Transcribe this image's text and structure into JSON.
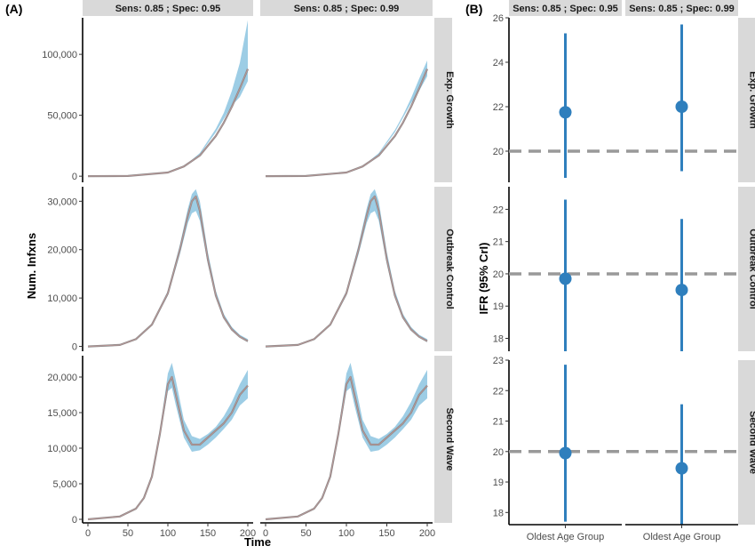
{
  "figure": {
    "panel_a_label": "(A)",
    "panel_b_label": "(B)",
    "columns": [
      "Sens: 0.85 ; Spec: 0.95",
      "Sens: 0.85 ; Spec: 0.99"
    ],
    "rows": [
      "Exp. Growth",
      "Outbreak Control",
      "Second Wave"
    ]
  },
  "colors": {
    "band": "#8cc4e0",
    "curve": "#8a8a8a",
    "point": "#2f7fbd",
    "reference_line": "#999999",
    "strip": "#d9d9d9"
  },
  "chart_data": [
    {
      "type": "area",
      "title": "(A)",
      "xlabel": "Time",
      "ylabel": "Num. Infxns",
      "xlim": [
        0,
        200
      ],
      "x_ticks": [
        0,
        50,
        100,
        150,
        200
      ],
      "grid": false,
      "facets": [
        {
          "row": "Exp. Growth",
          "ylim": [
            -5000,
            130000
          ],
          "y_ticks": [
            0,
            50000,
            100000
          ],
          "y_tick_labels": [
            "0",
            "50,000",
            "100,000"
          ],
          "panels": [
            {
              "column": "Sens: 0.85 ; Spec: 0.95",
              "x": [
                0,
                50,
                100,
                120,
                140,
                160,
                170,
                180,
                190,
                200
              ],
              "mean": [
                0,
                200,
                3000,
                8000,
                17000,
                33000,
                44000,
                57000,
                72000,
                88000
              ],
              "lower": [
                0,
                200,
                3000,
                8000,
                18000,
                36000,
                47000,
                58000,
                65000,
                78000
              ],
              "upper": [
                0,
                200,
                3000,
                8000,
                19000,
                39000,
                52000,
                70000,
                93000,
                128000
              ]
            },
            {
              "column": "Sens: 0.85 ; Spec: 0.99",
              "x": [
                0,
                50,
                100,
                120,
                140,
                160,
                170,
                180,
                190,
                200
              ],
              "mean": [
                0,
                200,
                3000,
                8000,
                17000,
                33000,
                44000,
                57000,
                72000,
                88000
              ],
              "lower": [
                0,
                200,
                3000,
                8000,
                18000,
                36000,
                48000,
                60000,
                70000,
                82000
              ],
              "upper": [
                0,
                200,
                3000,
                8000,
                19000,
                38000,
                50000,
                64000,
                80000,
                95000
              ]
            }
          ]
        },
        {
          "row": "Outbreak Control",
          "ylim": [
            -1000,
            33000
          ],
          "y_ticks": [
            0,
            10000,
            20000,
            30000
          ],
          "y_tick_labels": [
            "0",
            "10,000",
            "20,000",
            "30,000"
          ],
          "panels": [
            {
              "column": "Sens: 0.85 ; Spec: 0.95",
              "x": [
                0,
                40,
                60,
                80,
                100,
                115,
                125,
                130,
                135,
                140,
                150,
                160,
                170,
                180,
                190,
                200
              ],
              "mean": [
                0,
                300,
                1500,
                4500,
                11000,
                20000,
                27000,
                30000,
                31000,
                28000,
                18000,
                10500,
                6000,
                3500,
                2000,
                1100
              ],
              "lower": [
                0,
                300,
                1400,
                4300,
                10500,
                19000,
                25500,
                27500,
                28000,
                26000,
                17000,
                10000,
                5700,
                3300,
                1800,
                900
              ],
              "upper": [
                0,
                300,
                1600,
                4700,
                11500,
                21000,
                28500,
                31500,
                32500,
                30000,
                19500,
                11500,
                6700,
                4000,
                2400,
                1500
              ]
            },
            {
              "column": "Sens: 0.85 ; Spec: 0.99",
              "x": [
                0,
                40,
                60,
                80,
                100,
                115,
                125,
                130,
                135,
                140,
                150,
                160,
                170,
                180,
                190,
                200
              ],
              "mean": [
                0,
                300,
                1500,
                4500,
                11000,
                20000,
                27000,
                30000,
                31000,
                28000,
                18000,
                10500,
                6000,
                3500,
                2000,
                1100
              ],
              "lower": [
                0,
                300,
                1400,
                4300,
                10500,
                19000,
                25500,
                27500,
                28000,
                26000,
                17000,
                10000,
                5700,
                3300,
                1800,
                900
              ],
              "upper": [
                0,
                300,
                1600,
                4700,
                11500,
                21000,
                28500,
                31500,
                32500,
                30000,
                19500,
                11500,
                6700,
                4000,
                2400,
                1500
              ]
            }
          ]
        },
        {
          "row": "Second Wave",
          "ylim": [
            -500,
            23000
          ],
          "y_ticks": [
            0,
            5000,
            10000,
            15000,
            20000
          ],
          "y_tick_labels": [
            "0",
            "5,000",
            "10,000",
            "15,000",
            "20,000"
          ],
          "panels": [
            {
              "column": "Sens: 0.85 ; Spec: 0.95",
              "x": [
                0,
                40,
                60,
                70,
                80,
                90,
                100,
                105,
                110,
                120,
                130,
                140,
                150,
                160,
                170,
                180,
                190,
                200
              ],
              "mean": [
                0,
                400,
                1500,
                3000,
                6000,
                12000,
                19000,
                20000,
                17500,
                12500,
                10500,
                10500,
                11500,
                12500,
                13500,
                15000,
                17500,
                18800
              ],
              "lower": [
                0,
                400,
                1400,
                2900,
                5800,
                11500,
                18000,
                18500,
                16000,
                11500,
                9500,
                9700,
                10500,
                11500,
                12700,
                14000,
                16000,
                17000
              ],
              "upper": [
                0,
                400,
                1600,
                3100,
                6200,
                12500,
                20500,
                22000,
                19500,
                14000,
                11700,
                11300,
                12000,
                13000,
                14500,
                16500,
                19000,
                21000
              ]
            },
            {
              "column": "Sens: 0.85 ; Spec: 0.99",
              "x": [
                0,
                40,
                60,
                70,
                80,
                90,
                100,
                105,
                110,
                120,
                130,
                140,
                150,
                160,
                170,
                180,
                190,
                200
              ],
              "mean": [
                0,
                400,
                1500,
                3000,
                6000,
                12000,
                19000,
                20000,
                17500,
                12500,
                10500,
                10500,
                11500,
                12500,
                13500,
                15000,
                17500,
                18800
              ],
              "lower": [
                0,
                400,
                1400,
                2900,
                5800,
                11500,
                18000,
                18500,
                16000,
                11500,
                9500,
                9700,
                10500,
                11500,
                12700,
                14000,
                16000,
                17000
              ],
              "upper": [
                0,
                400,
                1600,
                3100,
                6200,
                12500,
                20500,
                22000,
                19500,
                14000,
                11700,
                11300,
                12000,
                13000,
                14500,
                16500,
                19000,
                21000
              ]
            }
          ]
        }
      ]
    },
    {
      "type": "scatter",
      "title": "(B)",
      "xlabel": "",
      "ylabel": "IFR (95% CrI)",
      "categories": [
        "Oldest Age Group"
      ],
      "reference_value": 20,
      "grid": false,
      "facets": [
        {
          "row": "Exp. Growth",
          "ylim": [
            18.6,
            26
          ],
          "y_ticks": [
            20,
            22,
            24,
            26
          ],
          "panels": [
            {
              "column": "Sens: 0.85 ; Spec: 0.95",
              "estimate": 21.75,
              "lower": 18.8,
              "upper": 25.3
            },
            {
              "column": "Sens: 0.85 ; Spec: 0.99",
              "estimate": 22.0,
              "lower": 19.1,
              "upper": 25.7
            }
          ]
        },
        {
          "row": "Outbreak Control",
          "ylim": [
            17.6,
            22.7
          ],
          "y_ticks": [
            18,
            19,
            20,
            21,
            22
          ],
          "panels": [
            {
              "column": "Sens: 0.85 ; Spec: 0.95",
              "estimate": 19.85,
              "lower": 17.6,
              "upper": 22.3
            },
            {
              "column": "Sens: 0.85 ; Spec: 0.99",
              "estimate": 19.5,
              "lower": 17.6,
              "upper": 21.7
            }
          ]
        },
        {
          "row": "Second Wave",
          "ylim": [
            17.6,
            23.0
          ],
          "y_ticks": [
            18,
            19,
            20,
            21,
            22,
            23
          ],
          "panels": [
            {
              "column": "Sens: 0.85 ; Spec: 0.95",
              "estimate": 19.95,
              "lower": 17.7,
              "upper": 22.85
            },
            {
              "column": "Sens: 0.85 ; Spec: 0.99",
              "estimate": 19.45,
              "lower": 17.6,
              "upper": 21.55
            }
          ]
        }
      ]
    }
  ]
}
